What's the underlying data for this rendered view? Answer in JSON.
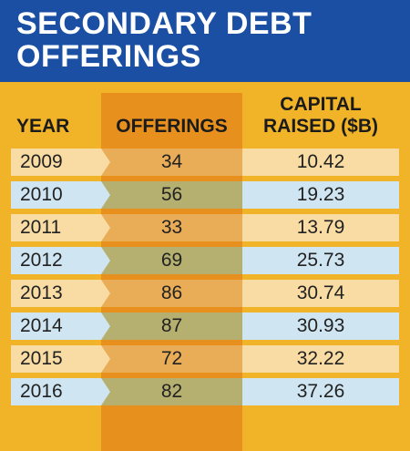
{
  "title": "SECONDARY DEBT\nOFFERINGS",
  "colors": {
    "background": "#f1b429",
    "title_band": "#1a4fa3",
    "offerings_column": "#e8901e",
    "row_light_odd": "#f9dca3",
    "row_light_even": "#cfe6f2",
    "offerings_odd": "#eaad57",
    "offerings_even": "#b5b06f"
  },
  "chart_data": {
    "type": "table",
    "columns": [
      "YEAR",
      "OFFERINGS",
      "CAPITAL\nRAISED ($B)"
    ],
    "rows": [
      {
        "year": "2009",
        "offerings": "34",
        "capital": "10.42"
      },
      {
        "year": "2010",
        "offerings": "56",
        "capital": "19.23"
      },
      {
        "year": "2011",
        "offerings": "33",
        "capital": "13.79"
      },
      {
        "year": "2012",
        "offerings": "69",
        "capital": "25.73"
      },
      {
        "year": "2013",
        "offerings": "86",
        "capital": "30.74"
      },
      {
        "year": "2014",
        "offerings": "87",
        "capital": "30.93"
      },
      {
        "year": "2015",
        "offerings": "72",
        "capital": "32.22"
      },
      {
        "year": "2016",
        "offerings": "82",
        "capital": "37.26"
      }
    ]
  }
}
